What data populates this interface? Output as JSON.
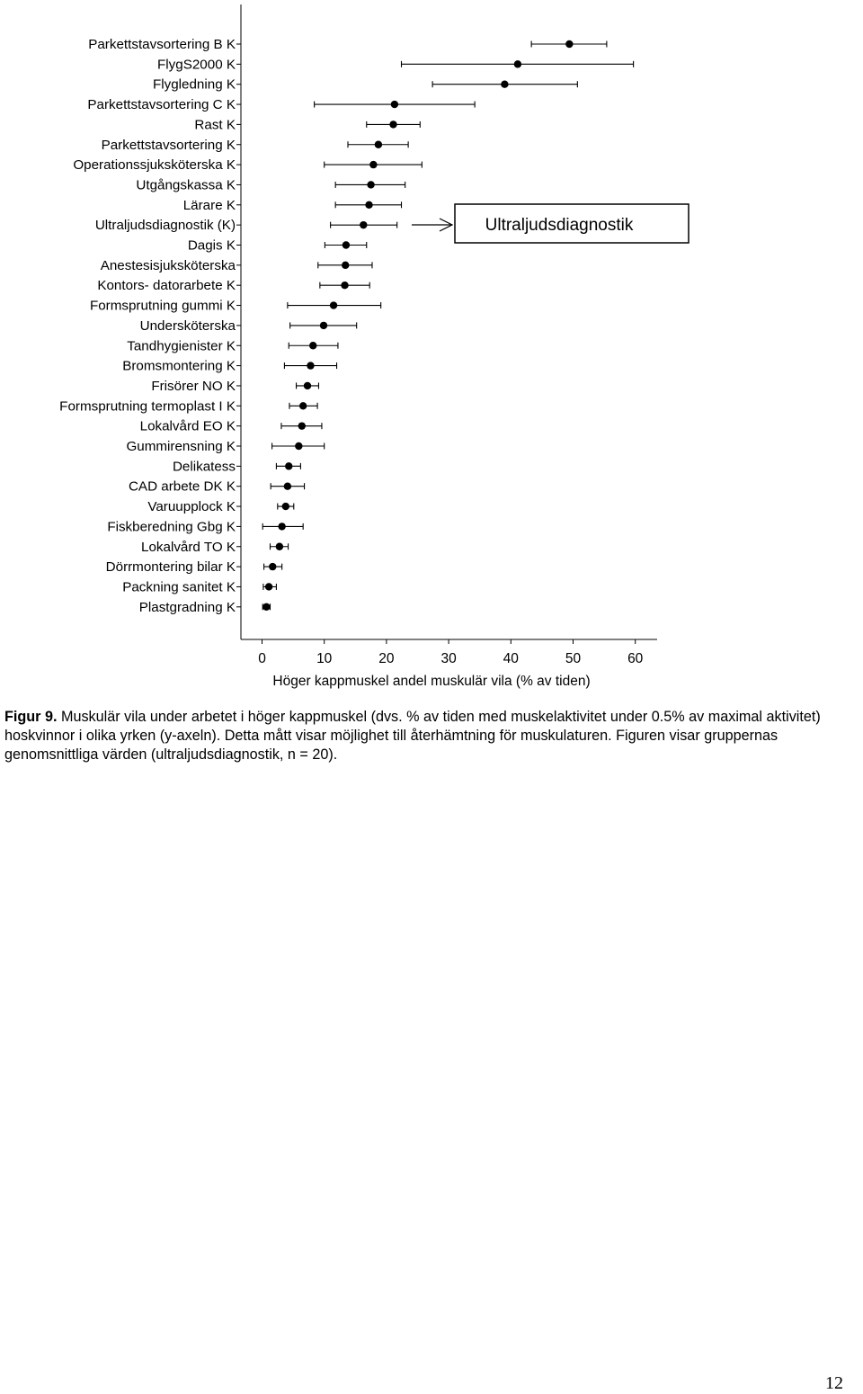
{
  "chart_data": {
    "type": "scatter",
    "orientation": "horizontal",
    "error_bars": true,
    "xlabel": "Höger kappmuskel andel muskulär vila (% av tiden)",
    "xlim": [
      -3,
      64
    ],
    "xticks": [
      0,
      10,
      20,
      30,
      40,
      50,
      60
    ],
    "categories": [
      "Parkettstavsortering B K",
      "FlygS2000 K",
      "Flygledning K",
      "Parkettstavsortering C K",
      "Rast K",
      "Parkettstavsortering K",
      "Operationssjuksköterska K",
      "Utgångskassa K",
      "Lärare K",
      "Ultraljudsdiagnostik (K)",
      "Dagis K",
      "Anestesisjuksköterska",
      "Kontors- datorarbete K",
      "Formsprutning gummi K",
      "Undersköterska",
      "Tandhygienister K",
      "Bromsmontering K",
      "Frisörer NO K",
      "Formsprutning termoplast I K",
      "Lokalvård EO K",
      "Gummirensning K",
      "Delikatess",
      "CAD arbete DK K",
      "Varuupplock K",
      "Fiskberedning Gbg K",
      "Lokalvård TO K",
      "Dörrmontering bilar K",
      "Packning sanitet K",
      "Plastgradning K"
    ],
    "means": [
      49.4,
      41.1,
      39.0,
      21.3,
      21.1,
      18.7,
      17.9,
      17.5,
      17.2,
      16.3,
      13.5,
      13.4,
      13.3,
      11.5,
      9.9,
      8.2,
      7.8,
      7.3,
      6.6,
      6.4,
      5.9,
      4.3,
      4.1,
      3.8,
      3.2,
      2.8,
      1.7,
      1.1,
      0.7
    ],
    "lower": [
      43.3,
      22.4,
      27.4,
      8.4,
      16.8,
      13.8,
      10.0,
      11.8,
      11.8,
      11.0,
      10.1,
      9.0,
      9.3,
      4.1,
      4.5,
      4.3,
      3.6,
      5.5,
      4.4,
      3.1,
      1.6,
      2.3,
      1.4,
      2.5,
      0.1,
      1.3,
      0.3,
      0.2,
      0.1
    ],
    "upper": [
      55.4,
      59.7,
      50.7,
      34.2,
      25.4,
      23.5,
      25.7,
      23.0,
      22.4,
      21.7,
      16.8,
      17.7,
      17.3,
      19.1,
      15.2,
      12.2,
      12.0,
      9.1,
      8.9,
      9.6,
      10.0,
      6.2,
      6.8,
      5.1,
      6.6,
      4.2,
      3.2,
      2.3,
      1.3
    ],
    "grid": false,
    "legend": "none"
  },
  "annotation": {
    "label": "Ultraljudsdiagnostik",
    "target_category": "Ultraljudsdiagnostik (K)"
  },
  "caption": {
    "figure_label": "Figur 9.",
    "text": " Muskulär vila under arbetet i höger kappmuskel (dvs. % av tiden med muskelaktivitet under 0.5% av maximal aktivitet) hoskvinnor  i olika yrken (y-axeln). Detta mått visar möjlighet till återhämtning för muskulaturen. Figuren visar gruppernas genomsnittliga värden (ultraljudsdiagnostik, n = 20)."
  },
  "page_number": "12"
}
